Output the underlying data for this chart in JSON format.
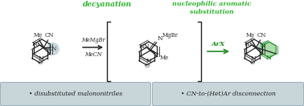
{
  "bg_color": "#ffffff",
  "decyanation_label": "decyanation",
  "nucl_arom_label": "nucleophilic aromatic\nsubstitution",
  "label_color": "#2db32d",
  "box1_text": "• disubstituted malononitriles",
  "box2_text": "• CN-to-(Het)Ar disconnection",
  "box_bg": "#c8d5d9",
  "box_border": "#9ab0b8",
  "text_color": "#222222",
  "green_color": "#228B22",
  "figsize": [
    3.78,
    1.32
  ],
  "dpi": 100
}
